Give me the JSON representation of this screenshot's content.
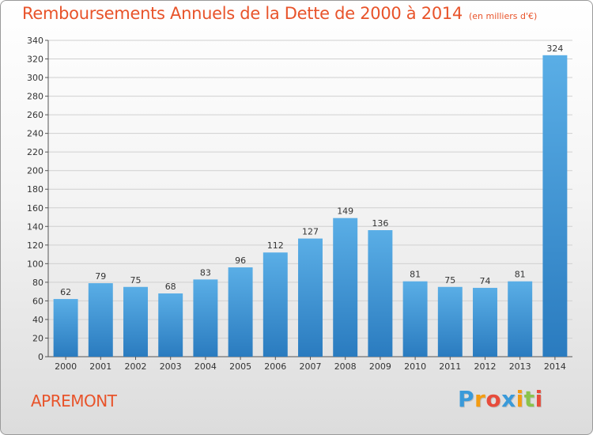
{
  "header": {
    "title": "Remboursements Annuels de la Dette de 2000 à 2014",
    "subtitle": "(en milliers d'€)"
  },
  "footer": {
    "commune": "APREMONT",
    "logo_text": "Proxiti",
    "logo_colors": [
      "#3a9ad9",
      "#f39c12",
      "#e74c3c",
      "#3a9ad9",
      "#f39c12",
      "#8bc34a",
      "#e74c3c"
    ]
  },
  "colors": {
    "accent": "#e8532a",
    "bar_top": "#5aaee6",
    "bar_bottom": "#2a7bbf",
    "grid": "#d0d0d0",
    "axis": "#555555"
  },
  "chart_data": {
    "type": "bar",
    "title": "Remboursements Annuels de la Dette de 2000 à 2014",
    "subtitle": "(en milliers d'€)",
    "categories": [
      "2000",
      "2001",
      "2002",
      "2003",
      "2004",
      "2005",
      "2006",
      "2007",
      "2008",
      "2009",
      "2010",
      "2011",
      "2012",
      "2013",
      "2014"
    ],
    "values": [
      62,
      79,
      75,
      68,
      83,
      96,
      112,
      127,
      149,
      136,
      81,
      75,
      74,
      81,
      324
    ],
    "ylim": [
      0,
      340
    ],
    "yticks": [
      0,
      20,
      40,
      60,
      80,
      100,
      120,
      140,
      160,
      180,
      200,
      220,
      240,
      260,
      280,
      300,
      320,
      340
    ],
    "grid": true,
    "data_labels": true
  }
}
